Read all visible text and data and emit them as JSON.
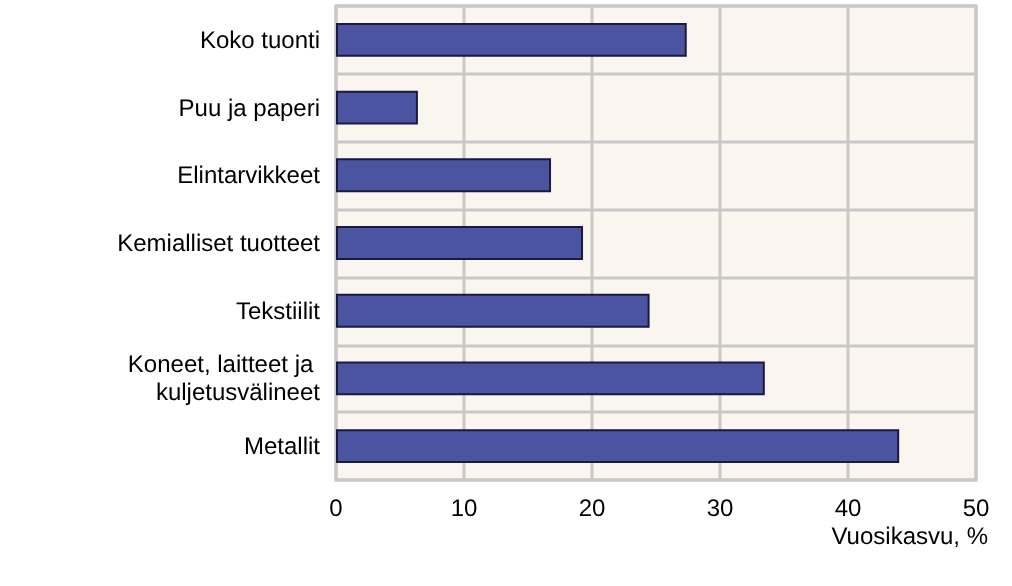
{
  "chart_data": {
    "type": "bar",
    "orientation": "horizontal",
    "xlabel": "Vuosikasvu, %",
    "categories": [
      "Koko tuonti",
      "Puu ja paperi",
      "Elintarvikkeet",
      "Kemialliset tuotteet",
      "Tekstiilit",
      "Koneet, laitteet ja kuljetusvälineet",
      "Metallit"
    ],
    "values": [
      27.4,
      6.4,
      16.8,
      19.3,
      24.5,
      33.5,
      44.0
    ],
    "color": "#4b54a0",
    "xlim": [
      0,
      50
    ],
    "xticks": [
      0,
      10,
      20,
      30,
      40,
      50
    ],
    "grid": true
  }
}
